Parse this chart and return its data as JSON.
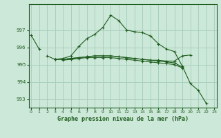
{
  "title": "Graphe pression niveau de la mer (hPa)",
  "background_color": "#cce8d8",
  "grid_color": "#aacfbe",
  "line_color": "#1e5c1e",
  "ylim": [
    992.5,
    998.5
  ],
  "yticks": [
    993,
    994,
    995,
    996,
    997
  ],
  "xlim": [
    -0.3,
    23.3
  ],
  "xticks": [
    0,
    1,
    2,
    3,
    4,
    5,
    6,
    7,
    8,
    9,
    10,
    11,
    12,
    13,
    14,
    15,
    16,
    17,
    18,
    19,
    20,
    21,
    22,
    23
  ],
  "series": [
    [
      996.7,
      995.9,
      null,
      null,
      null,
      null,
      null,
      null,
      null,
      null,
      null,
      null,
      null,
      null,
      null,
      null,
      null,
      null,
      null,
      null,
      null,
      null,
      null,
      null
    ],
    [
      null,
      null,
      995.5,
      995.3,
      995.35,
      995.5,
      996.05,
      996.5,
      996.75,
      997.15,
      997.85,
      997.55,
      997.0,
      996.9,
      996.85,
      996.65,
      996.2,
      995.9,
      995.75,
      994.9,
      993.9,
      993.5,
      992.75,
      null
    ],
    [
      null,
      null,
      null,
      995.3,
      995.3,
      995.35,
      995.4,
      995.45,
      995.5,
      995.5,
      995.5,
      995.45,
      995.4,
      995.35,
      995.3,
      995.25,
      995.25,
      995.2,
      995.2,
      995.5,
      995.55,
      null,
      null,
      null
    ],
    [
      null,
      null,
      null,
      995.3,
      995.3,
      995.35,
      995.4,
      995.45,
      995.5,
      995.5,
      995.5,
      995.45,
      995.4,
      995.35,
      995.3,
      995.25,
      995.2,
      995.15,
      995.1,
      994.85,
      null,
      null,
      null,
      null
    ],
    [
      null,
      null,
      null,
      null,
      995.25,
      995.3,
      995.35,
      995.4,
      995.4,
      995.4,
      995.4,
      995.35,
      995.3,
      995.25,
      995.2,
      995.15,
      995.1,
      995.05,
      995.0,
      994.8,
      null,
      null,
      null,
      null
    ]
  ]
}
